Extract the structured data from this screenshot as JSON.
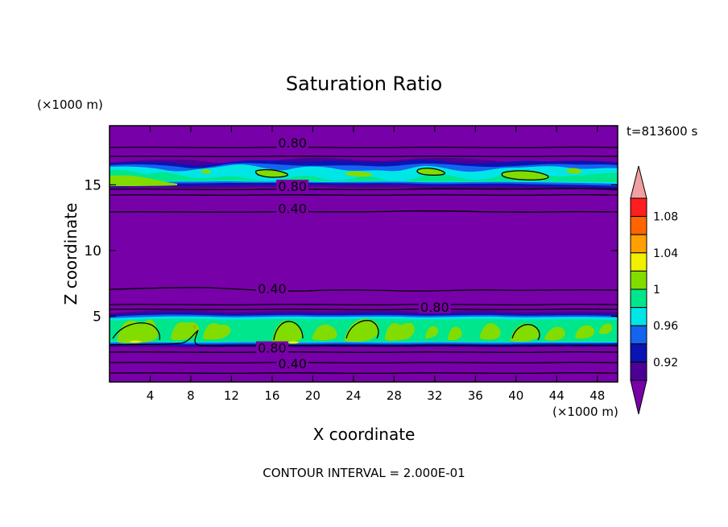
{
  "chart_data": {
    "type": "heatmap",
    "title": "Saturation Ratio",
    "xlabel": "X coordinate",
    "ylabel": "Z coordinate",
    "x_unit": "(×1000 m)",
    "y_unit": "(×1000 m)",
    "time_label": "t=813600 s",
    "footer": "CONTOUR INTERVAL = 2.000E-01",
    "xlim": [
      0,
      50
    ],
    "ylim": [
      0,
      19.5
    ],
    "x_ticks": [
      4,
      8,
      12,
      16,
      20,
      24,
      28,
      32,
      36,
      40,
      44,
      48
    ],
    "y_ticks": [
      5,
      10,
      15
    ],
    "colorbar": {
      "labels": [
        "0.92",
        "0.96",
        "1",
        "1.04",
        "1.08"
      ],
      "colors": [
        "#7800a8",
        "#4b0096",
        "#0a14b4",
        "#1464f0",
        "#00e6e6",
        "#00e68c",
        "#82dc00",
        "#f0f000",
        "#ffa000",
        "#ff6400",
        "#ff1e1e",
        "#f0a0a0"
      ]
    },
    "contour_labels": [
      {
        "text": "0.80",
        "x": 18.0,
        "z": 18.2
      },
      {
        "text": "0.80",
        "x": 18.0,
        "z": 14.9
      },
      {
        "text": "0.40",
        "x": 18.0,
        "z": 13.2
      },
      {
        "text": "0.40",
        "x": 16.0,
        "z": 7.1
      },
      {
        "text": "0.80",
        "x": 32.0,
        "z": 5.7
      },
      {
        "text": "0.80",
        "x": 16.0,
        "z": 2.6
      },
      {
        "text": "0.40",
        "x": 18.0,
        "z": 1.4
      }
    ]
  }
}
